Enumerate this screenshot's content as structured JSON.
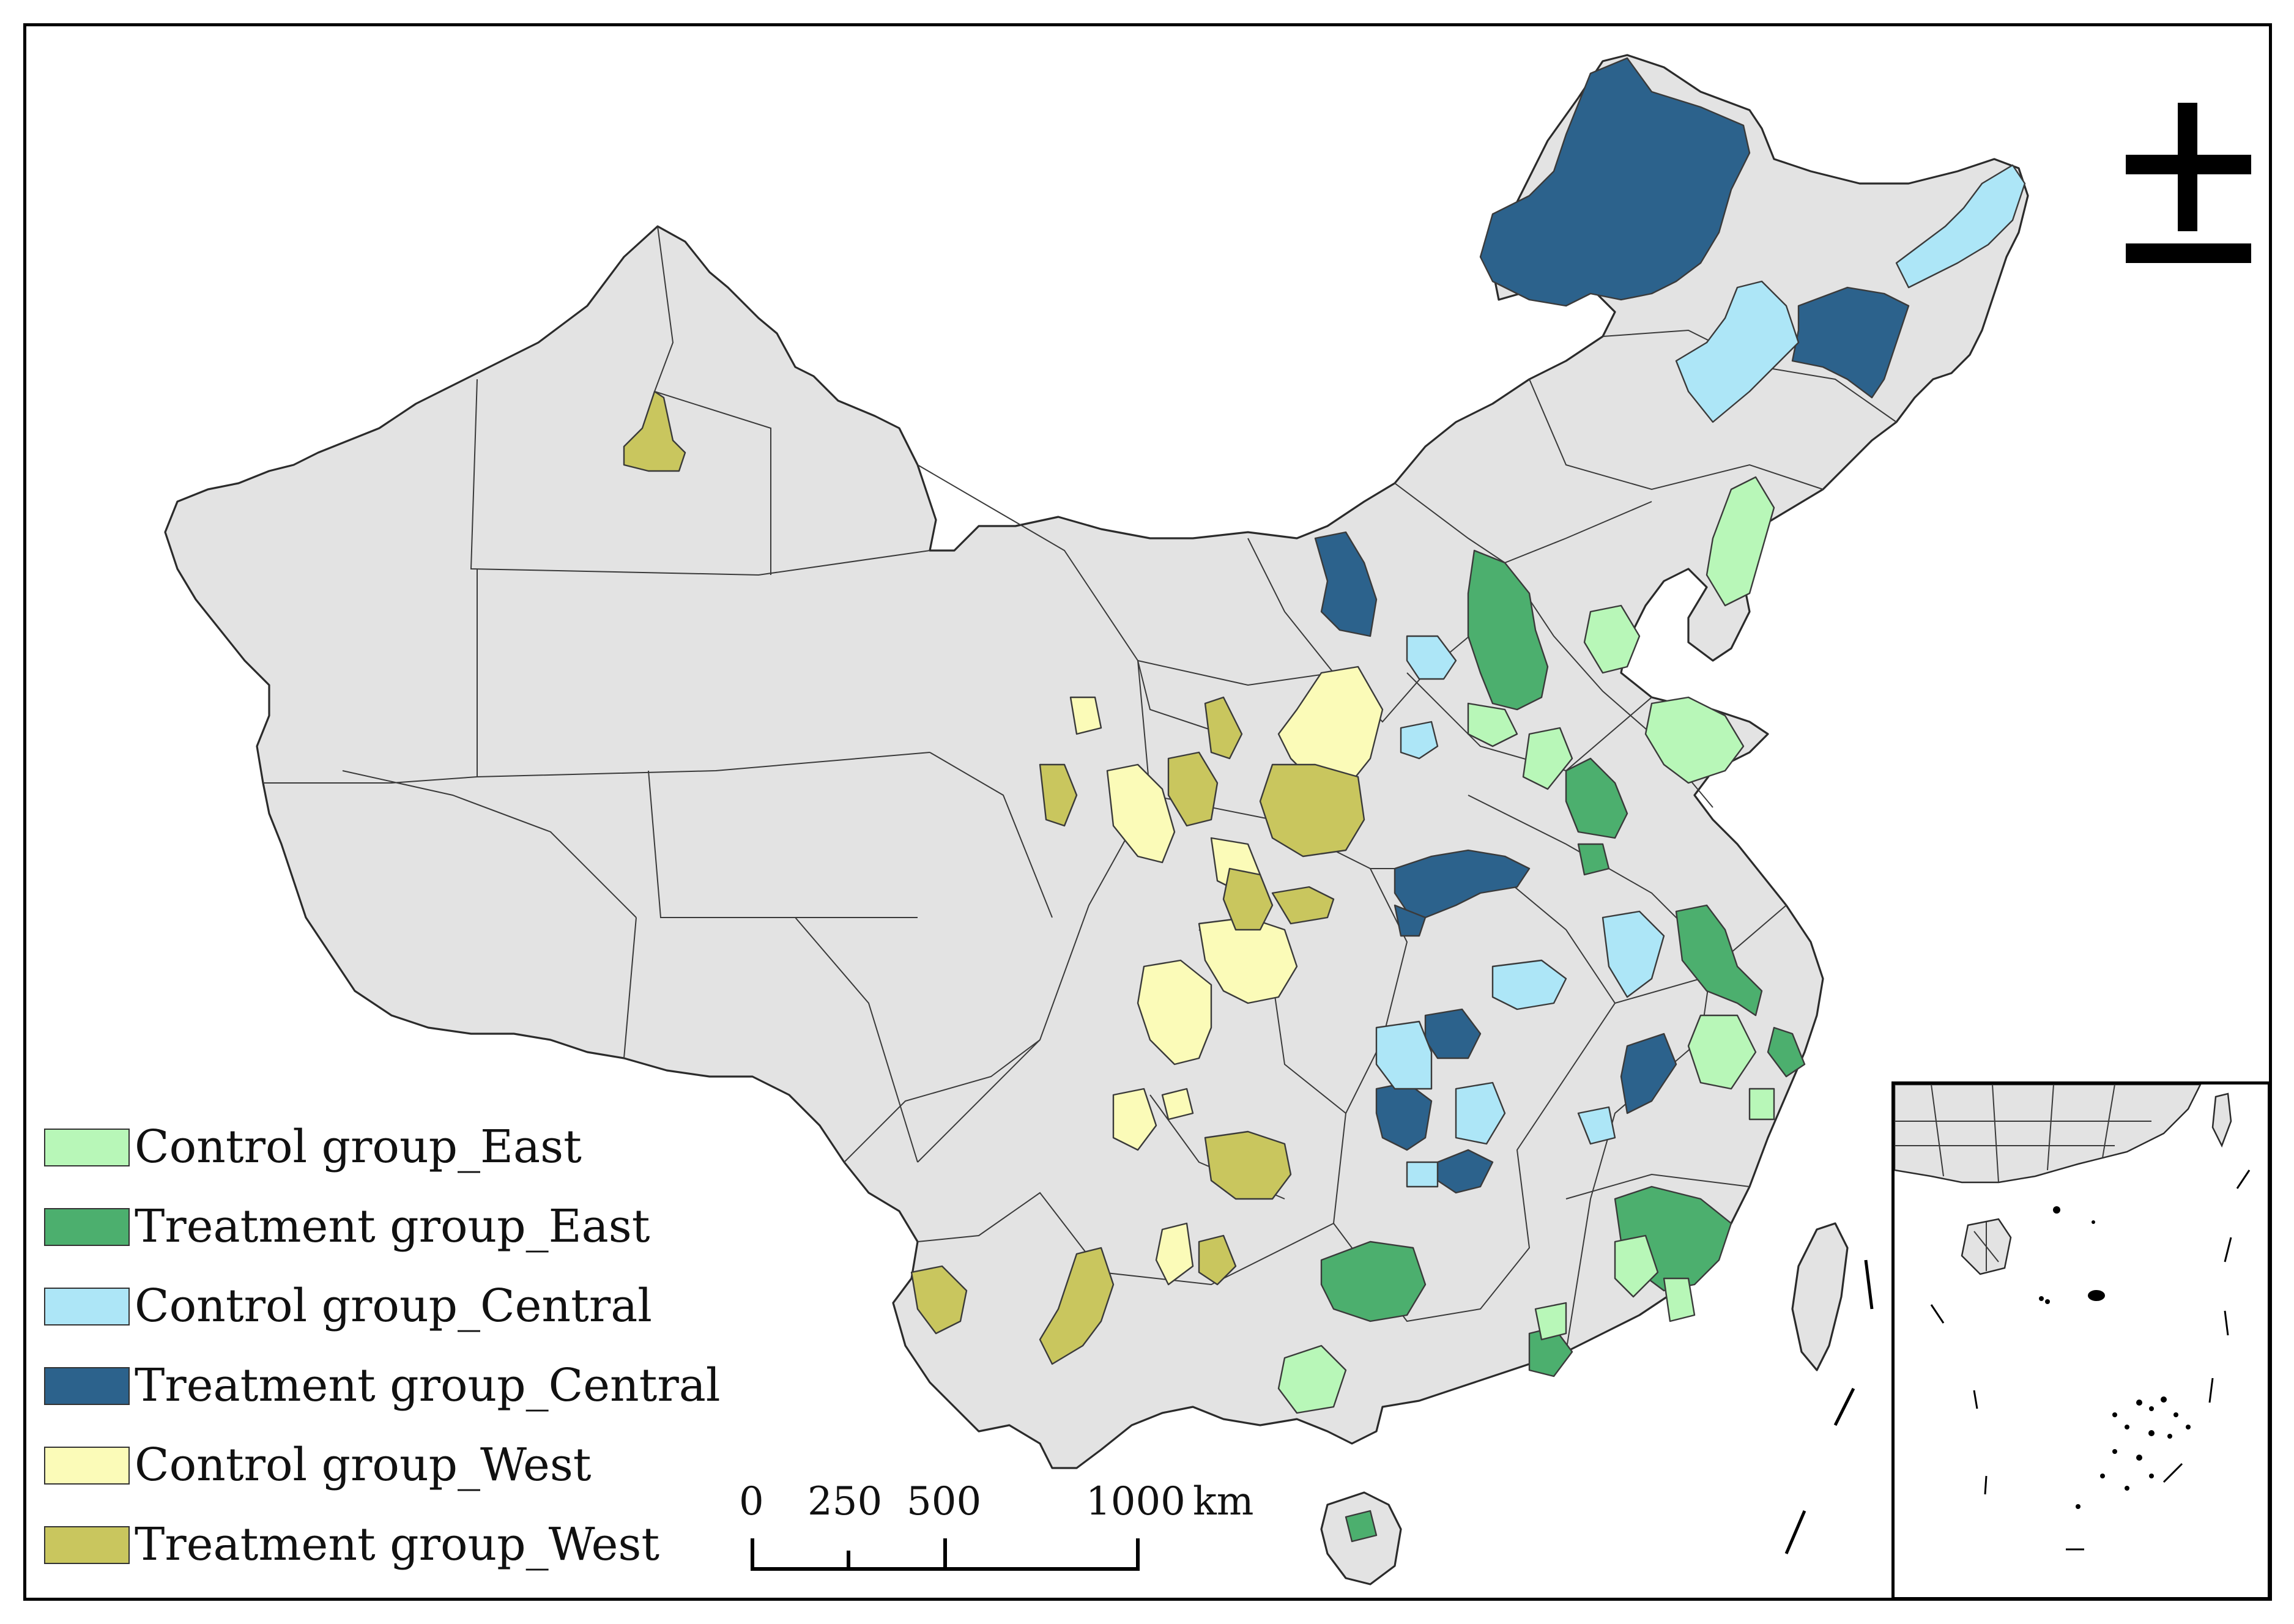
{
  "legend": {
    "items": [
      {
        "label": "Control group_East",
        "color": "#b8f7b8"
      },
      {
        "label": "Treatment group_East",
        "color": "#4caf6e"
      },
      {
        "label": "Control group_Central",
        "color": "#ade6f7"
      },
      {
        "label": "Treatment group_Central",
        "color": "#2c628c"
      },
      {
        "label": "Control group_West",
        "color": "#fbfbb8"
      },
      {
        "label": "Treatment group_West",
        "color": "#c9c65e"
      }
    ]
  },
  "scale_bar": {
    "ticks": [
      "0",
      "250",
      "500",
      "1000"
    ],
    "unit": "km"
  },
  "north_arrow": {
    "icon": "north-arrow-icon"
  },
  "base_color": "#e3e3e3"
}
